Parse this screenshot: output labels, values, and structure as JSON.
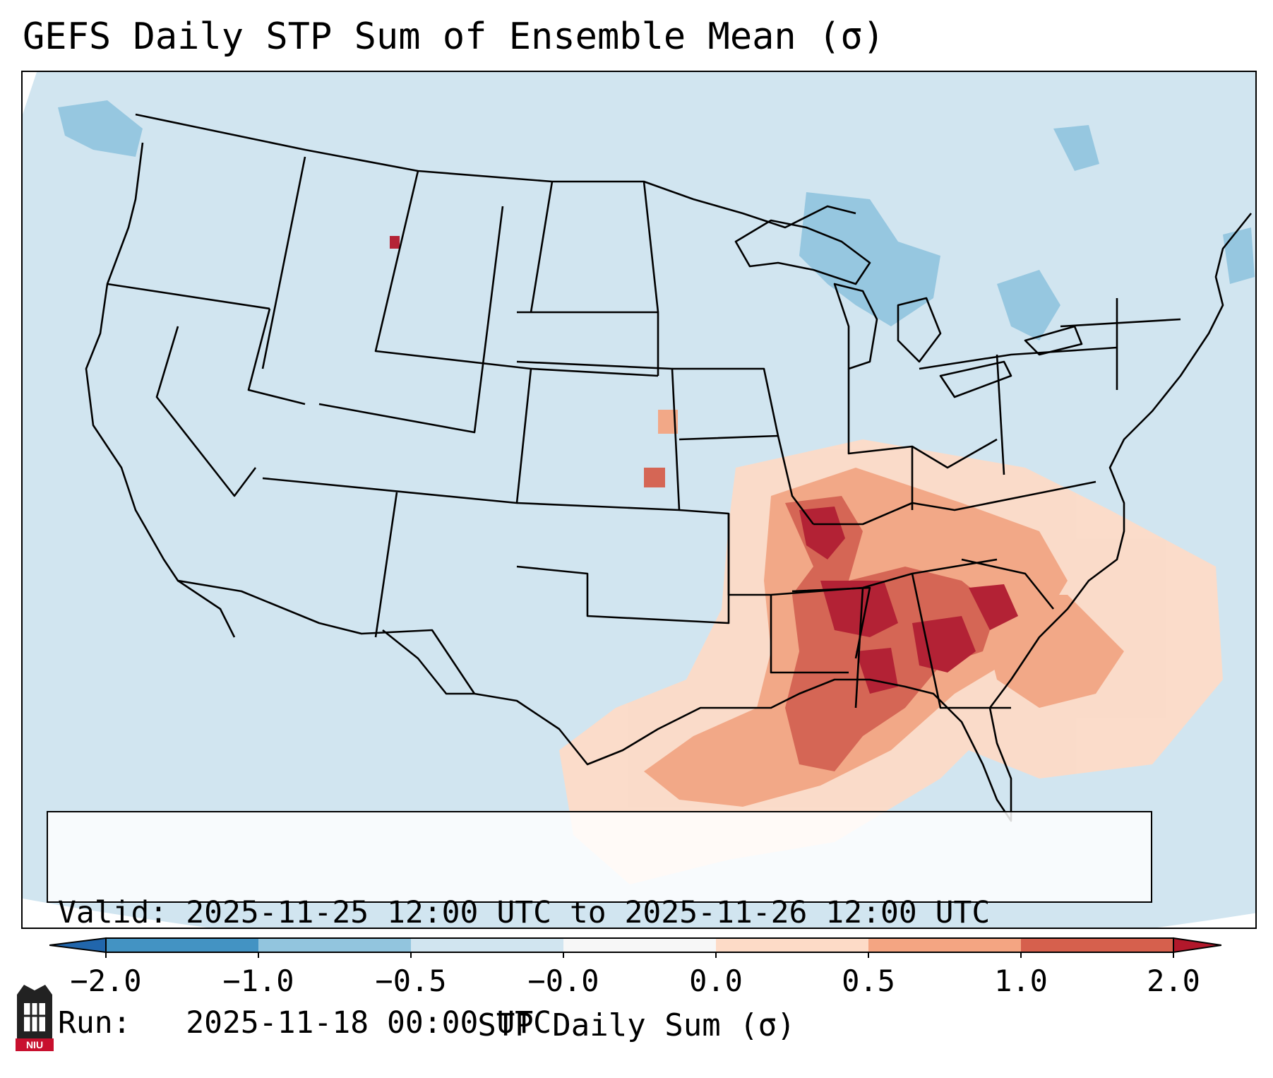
{
  "title": "GEFS Daily STP Sum of Ensemble Mean (σ)",
  "map": {
    "projection_note": "CONUS map with state boundaries",
    "background_color": "#d1e5f0",
    "land_outline_color": "#000000"
  },
  "info": {
    "valid_line": "Valid: 2025-11-25 12:00 UTC to 2025-11-26 12:00 UTC",
    "run_line": "Run:   2025-11-18 00:00 UTC"
  },
  "colorbar": {
    "label": "STP Daily Sum (σ)",
    "ticks": [
      "−2.0",
      "−1.0",
      "−0.5",
      "−0.0",
      "0.0",
      "0.5",
      "1.0",
      "2.0"
    ],
    "colors": [
      "#4393c3",
      "#92c5de",
      "#d1e5f0",
      "#f7f7f7",
      "#fddbc7",
      "#f4a582",
      "#d6604d"
    ],
    "under_color": "#2166ac",
    "over_color": "#b2182b"
  },
  "logo": {
    "text": "NIU"
  }
}
